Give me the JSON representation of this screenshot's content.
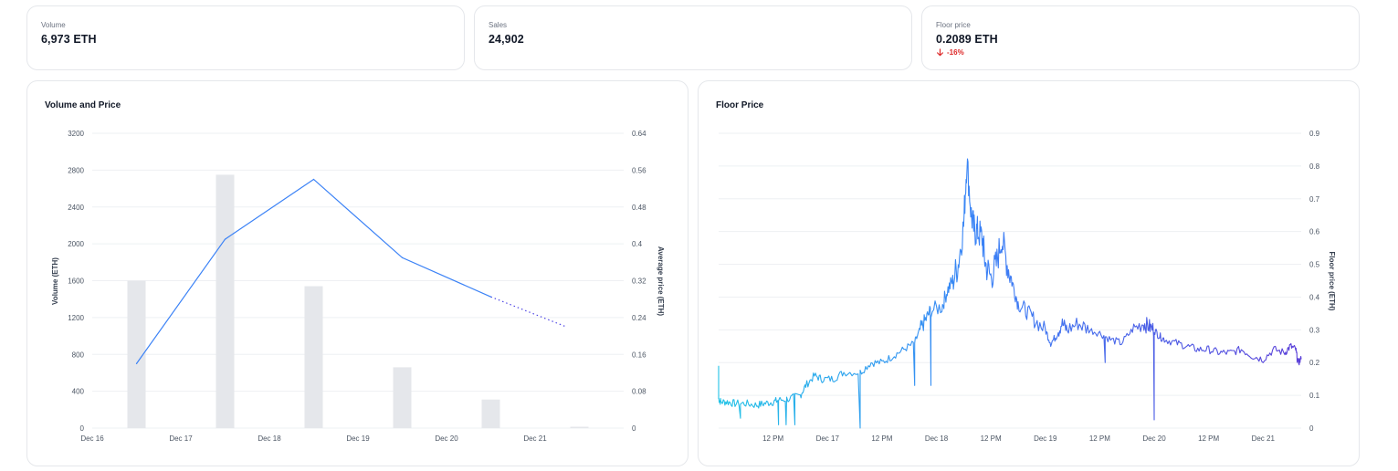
{
  "stats": [
    {
      "label": "Volume",
      "value": "6,973 ETH"
    },
    {
      "label": "Sales",
      "value": "24,902"
    },
    {
      "label": "Floor price",
      "value": "0.2089 ETH",
      "change": "-16%",
      "change_color": "#dc2626",
      "change_icon": "arrow-down-icon"
    }
  ],
  "colors": {
    "bar": "#e5e7eb",
    "line": "#3b82f6",
    "grid": "#eef0f3",
    "text": "#4b5563",
    "floor_start": "#22c3e6",
    "floor_end": "#5a3fd8"
  },
  "chart_data": [
    {
      "type": "bar",
      "title": "Volume and Price",
      "categories": [
        "Dec 16",
        "Dec 17",
        "Dec 18",
        "Dec 19",
        "Dec 20",
        "Dec 21"
      ],
      "ylabel": "Volume (ETH)",
      "ylabel_right": "Average price (ETH)",
      "ylim": [
        0,
        3200
      ],
      "yticks": [
        0,
        400,
        800,
        1200,
        1600,
        2000,
        2400,
        2800,
        3200
      ],
      "ylim_right": [
        0,
        0.64
      ],
      "yticks_right": [
        "0",
        "0.08",
        "0.16",
        "0.24",
        "0.32",
        "0.4",
        "0.48",
        "0.56",
        "0.64"
      ],
      "grid": true,
      "series": [
        {
          "type": "bar",
          "x": [
            16.5,
            17.5,
            18.5,
            19.5,
            20.5,
            21.5
          ],
          "values": [
            1600,
            2750,
            1540,
            660,
            310,
            15
          ]
        },
        {
          "type": "line",
          "axis": "right",
          "x": [
            16.5,
            17.5,
            18.5,
            19.5,
            20.5
          ],
          "values": [
            0.14,
            0.41,
            0.54,
            0.37,
            0.285
          ],
          "projection": {
            "x": [
              20.5,
              21.35
            ],
            "values": [
              0.285,
              0.22
            ]
          }
        }
      ]
    },
    {
      "type": "line",
      "title": "Floor Price",
      "ylabel": "Floor price (ETH)",
      "x_tick_labels": [
        "12 PM",
        "Dec 17",
        "12 PM",
        "Dec 18",
        "12 PM",
        "Dec 19",
        "12 PM",
        "Dec 20",
        "12 PM",
        "Dec 21"
      ],
      "x_ticks_days": [
        16.5,
        17.0,
        17.5,
        18.0,
        18.5,
        19.0,
        19.5,
        20.0,
        20.5,
        21.0
      ],
      "xlim": [
        16.0,
        21.35
      ],
      "ylim": [
        0,
        0.9
      ],
      "yticks": [
        "0",
        "0.1",
        "0.2",
        "0.3",
        "0.4",
        "0.5",
        "0.6",
        "0.7",
        "0.8",
        "0.9"
      ],
      "grid": true,
      "series": [
        {
          "x": [
            16.0,
            16.02,
            16.08,
            16.15,
            16.25,
            16.35,
            16.42,
            16.5,
            16.55,
            16.65,
            16.75,
            16.8,
            16.88,
            16.95,
            17.05,
            17.15,
            17.3,
            17.4,
            17.5,
            17.6,
            17.7,
            17.8,
            17.85,
            17.9,
            17.95,
            18.05,
            18.1,
            18.15,
            18.2,
            18.25,
            18.28,
            18.32,
            18.35,
            18.38,
            18.42,
            18.45,
            18.5,
            18.55,
            18.6,
            18.65,
            18.7,
            18.75,
            18.82,
            18.9,
            19.0,
            19.05,
            19.1,
            19.15,
            19.2,
            19.3,
            19.4,
            19.5,
            19.6,
            19.7,
            19.8,
            19.9,
            19.95,
            20.0,
            20.05,
            20.1,
            20.2,
            20.3,
            20.4,
            20.5,
            20.6,
            20.7,
            20.8,
            20.9,
            21.0,
            21.1,
            21.2,
            21.25,
            21.3,
            21.32,
            21.35
          ],
          "values": [
            0.09,
            0.08,
            0.08,
            0.075,
            0.075,
            0.07,
            0.075,
            0.08,
            0.085,
            0.09,
            0.1,
            0.13,
            0.16,
            0.15,
            0.15,
            0.17,
            0.17,
            0.2,
            0.2,
            0.22,
            0.24,
            0.26,
            0.3,
            0.33,
            0.36,
            0.37,
            0.42,
            0.45,
            0.5,
            0.62,
            0.82,
            0.65,
            0.6,
            0.6,
            0.58,
            0.5,
            0.46,
            0.5,
            0.58,
            0.5,
            0.44,
            0.38,
            0.36,
            0.33,
            0.3,
            0.26,
            0.28,
            0.32,
            0.3,
            0.32,
            0.3,
            0.29,
            0.27,
            0.26,
            0.3,
            0.32,
            0.31,
            0.3,
            0.28,
            0.27,
            0.26,
            0.25,
            0.24,
            0.24,
            0.23,
            0.23,
            0.24,
            0.22,
            0.21,
            0.24,
            0.23,
            0.25,
            0.24,
            0.2,
            0.21
          ]
        }
      ]
    }
  ]
}
